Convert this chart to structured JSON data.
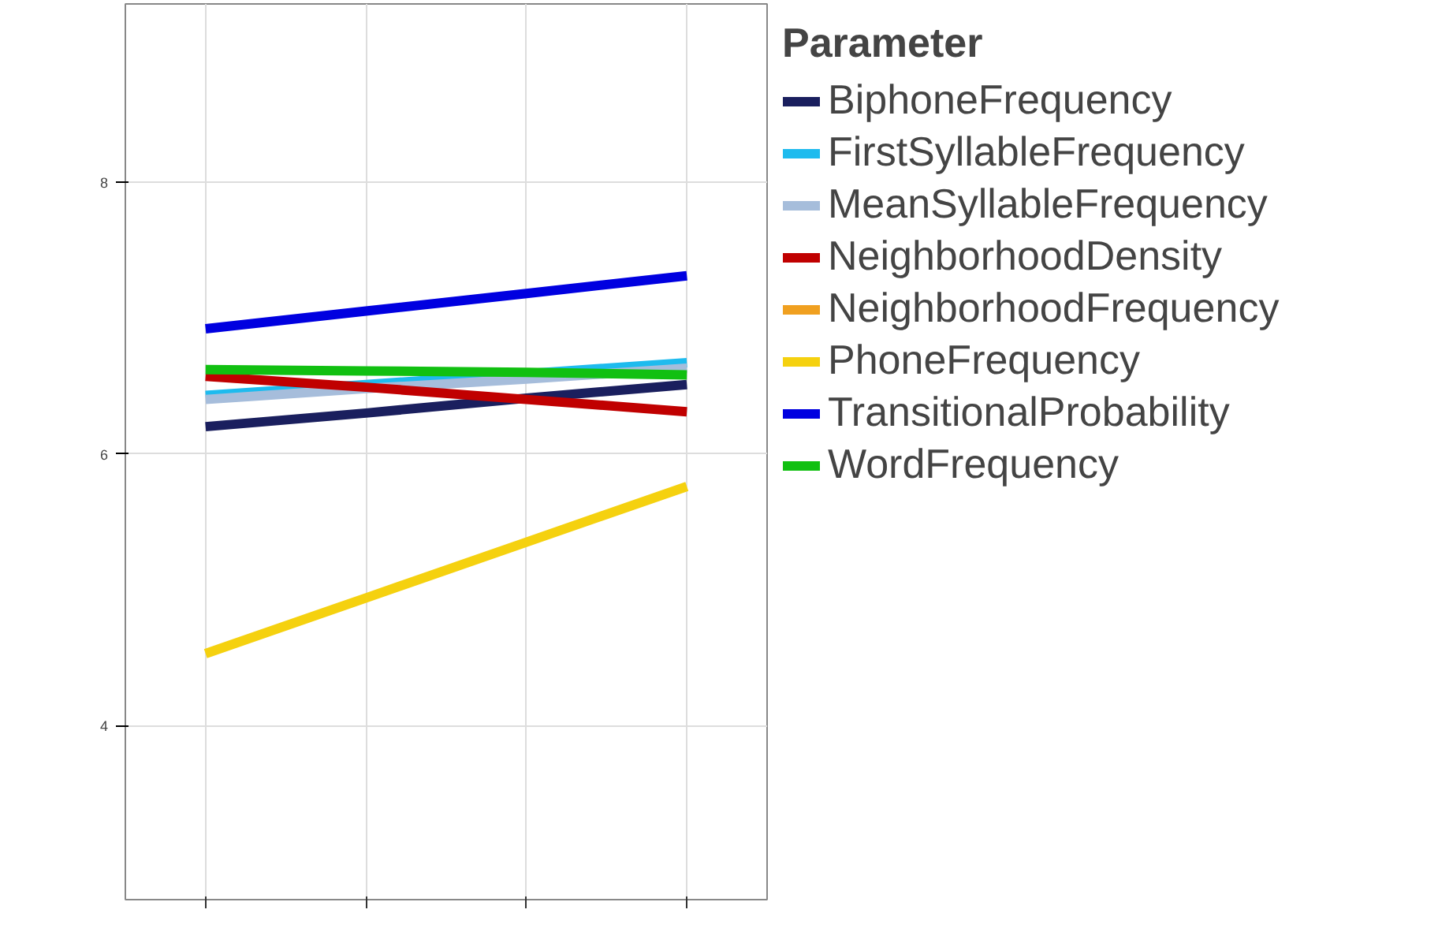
{
  "chart_data": {
    "type": "line",
    "legend_title": "Parameter",
    "categories": [
      null,
      null,
      null,
      null
    ],
    "ylim": [
      2.72,
      9.31
    ],
    "yticks": [
      4,
      6,
      8
    ],
    "grid": true,
    "legend": "right",
    "series": [
      {
        "name": "BiphoneFrequency",
        "color": "#1a1f5e",
        "values": [
          6.2,
          6.3,
          6.41,
          6.51
        ]
      },
      {
        "name": "FirstSyllableFrequency",
        "color": "#1ebbee",
        "values": [
          6.43,
          6.51,
          6.59,
          6.67
        ]
      },
      {
        "name": "MeanSyllableFrequency",
        "color": "#a6bddb",
        "values": [
          6.4,
          6.48,
          6.55,
          6.63
        ]
      },
      {
        "name": "NeighborhoodDensity",
        "color": "#c00000",
        "values": [
          6.57,
          6.49,
          6.4,
          6.31
        ]
      },
      {
        "name": "NeighborhoodFrequency",
        "color": "#f0a020",
        "values": [
          null,
          null,
          null,
          null
        ]
      },
      {
        "name": "PhoneFrequency",
        "color": "#f5d10f",
        "values": [
          4.53,
          4.94,
          5.35,
          5.76
        ]
      },
      {
        "name": "TransitionalProbability",
        "color": "#0000e0",
        "values": [
          6.92,
          7.05,
          7.18,
          7.31
        ]
      },
      {
        "name": "WordFrequency",
        "color": "#11c011",
        "values": [
          6.62,
          6.61,
          6.6,
          6.58
        ]
      }
    ]
  }
}
